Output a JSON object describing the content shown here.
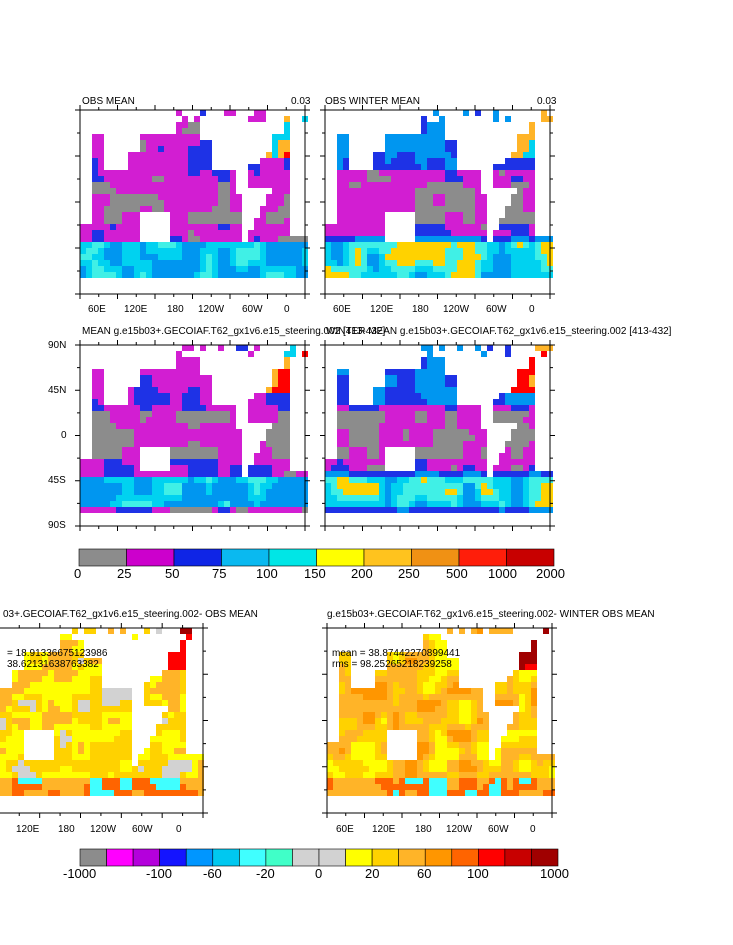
{
  "colors": {
    "mean_levels": [
      "#8c8c8c",
      "#d21ed2",
      "#a01ed2",
      "#1e32e6",
      "#0096f0",
      "#00d2f0",
      "#40f0e6",
      "#ffff00",
      "#ffd200",
      "#ffb428",
      "#ff7800",
      "#ff0000",
      "#b40000"
    ],
    "diff_levels": [
      "#8c8c8c",
      "#ff00ff",
      "#b400dc",
      "#1414ff",
      "#0096ff",
      "#00c8f0",
      "#40ffff",
      "#40ffc8",
      "#d2d2d2",
      "#d2d2d2",
      "#ffff00",
      "#ffd200",
      "#ffb428",
      "#ff9600",
      "#ff6400",
      "#ff0000",
      "#c80000",
      "#a00000"
    ],
    "land": "#ffffff"
  },
  "chart_data": [
    {
      "type": "heatmap",
      "panel": "obs-mean",
      "title": "OBS MEAN",
      "value_label": "0.03",
      "xticks": [
        "60E",
        "120E",
        "180",
        "120W",
        "60W",
        "0"
      ]
    },
    {
      "type": "heatmap",
      "panel": "obs-winter-mean",
      "title": "OBS WINTER MEAN",
      "value_label": "0.03",
      "xticks": [
        "60E",
        "120E",
        "180",
        "120W",
        "60W",
        "0"
      ]
    },
    {
      "type": "heatmap",
      "panel": "model-mean",
      "title": "MEAN g.e15b03+.GECOIAF.T62_gx1v6.e15_steering.002 [413-432]",
      "yticks": [
        "90N",
        "45N",
        "0",
        "45S",
        "90S"
      ]
    },
    {
      "type": "heatmap",
      "panel": "model-winter-mean",
      "title": "WINTER MEAN g.e15b03+.GECOIAF.T62_gx1v6.e15_steering.002 [413-432]"
    },
    {
      "type": "colorbar",
      "panel": "mean-colorbar",
      "labels": [
        "0",
        "25",
        "50",
        "75",
        "100",
        "150",
        "200",
        "250",
        "500",
        "1000",
        "2000"
      ],
      "colors": [
        "#8c8c8c",
        "#cc00cc",
        "#0f25e6",
        "#0ab9f0",
        "#00e6e6",
        "#ffff00",
        "#ffc31e",
        "#f09114",
        "#ff1e0a",
        "#c80000"
      ]
    },
    {
      "type": "heatmap",
      "panel": "diff-mean",
      "title": "03+.GECOIAF.T62_gx1v6.e15_steering.002- OBS MEAN",
      "stat1": "= 18.91336675123986",
      "stat2": "38.62131638763382",
      "xticks": [
        "120E",
        "180",
        "120W",
        "60W",
        "0"
      ]
    },
    {
      "type": "heatmap",
      "panel": "diff-winter-mean",
      "title": "g.e15b03+.GECOIAF.T62_gx1v6.e15_steering.002- WINTER OBS MEAN",
      "stat1": "mean = 38.87442270899441",
      "stat2": "rms = 98.25265218239258",
      "xticks": [
        "60E",
        "120E",
        "180",
        "120W",
        "60W",
        "0"
      ]
    },
    {
      "type": "colorbar",
      "panel": "diff-colorbar",
      "labels": [
        "-1000",
        "-100",
        "-60",
        "-20",
        "0",
        "20",
        "60",
        "100",
        "1000"
      ],
      "colors": [
        "#8c8c8c",
        "#ff00ff",
        "#b400dc",
        "#1414ff",
        "#0096ff",
        "#00c8f0",
        "#40ffff",
        "#40ffc8",
        "#d2d2d2",
        "#d2d2d2",
        "#ffff00",
        "#ffd200",
        "#ffb428",
        "#ff9600",
        "#ff6400",
        "#ff0000",
        "#c80000",
        "#a00000"
      ]
    }
  ]
}
